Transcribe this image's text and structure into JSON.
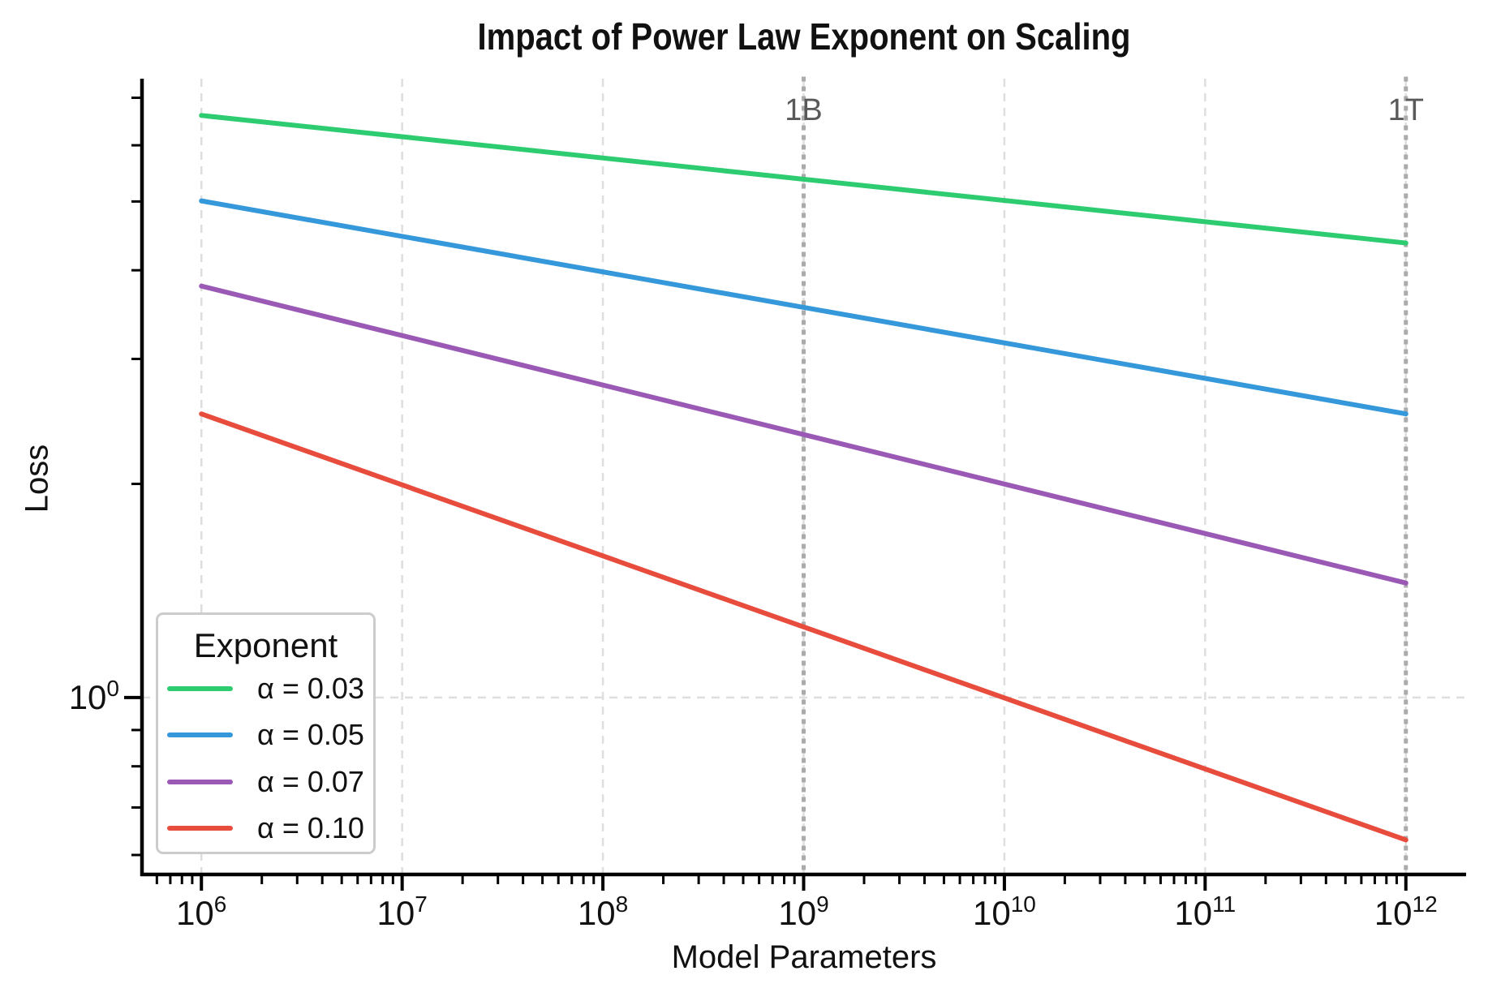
{
  "chart_data": {
    "type": "line",
    "title": "Impact of Power Law Exponent on Scaling",
    "xlabel": "Model Parameters",
    "ylabel": "Loss",
    "x_scale": "log",
    "y_scale": "log",
    "xlim_log10": [
      5.704,
      12.3
    ],
    "ylim_log10": [
      -0.247,
      0.872
    ],
    "x_tick_exponents": [
      6,
      7,
      8,
      9,
      10,
      11,
      12
    ],
    "y_tick_exponents": [
      0
    ],
    "grid": true,
    "legend": {
      "title": "Exponent",
      "position": "lower left"
    },
    "series": [
      {
        "label": "α = 0.03",
        "alpha": 0.03,
        "color": "#2ecc71",
        "points": [
          {
            "x": 1000000,
            "y": 6.61
          },
          {
            "x": 1000000000000,
            "y": 4.37
          }
        ]
      },
      {
        "label": "α = 0.05",
        "alpha": 0.05,
        "color": "#3498db",
        "points": [
          {
            "x": 1000000,
            "y": 5.01
          },
          {
            "x": 1000000000000,
            "y": 2.51
          }
        ]
      },
      {
        "label": "α = 0.07",
        "alpha": 0.07,
        "color": "#9b59b6",
        "points": [
          {
            "x": 1000000,
            "y": 3.8
          },
          {
            "x": 1000000000000,
            "y": 1.45
          }
        ]
      },
      {
        "label": "α = 0.10",
        "alpha": 0.1,
        "color": "#e74c3c",
        "points": [
          {
            "x": 1000000,
            "y": 2.51
          },
          {
            "x": 1000000000000,
            "y": 0.63
          }
        ]
      }
    ],
    "annotations": [
      {
        "x": 1000000000,
        "label": "1B"
      },
      {
        "x": 1000000000000,
        "label": "1T"
      }
    ],
    "colors": {
      "grid": "#dedede",
      "annotation_line": "#ababab",
      "annotation_text": "#595959",
      "spine": "#000000",
      "tick_label": "#111111",
      "background": "#ffffff"
    }
  }
}
